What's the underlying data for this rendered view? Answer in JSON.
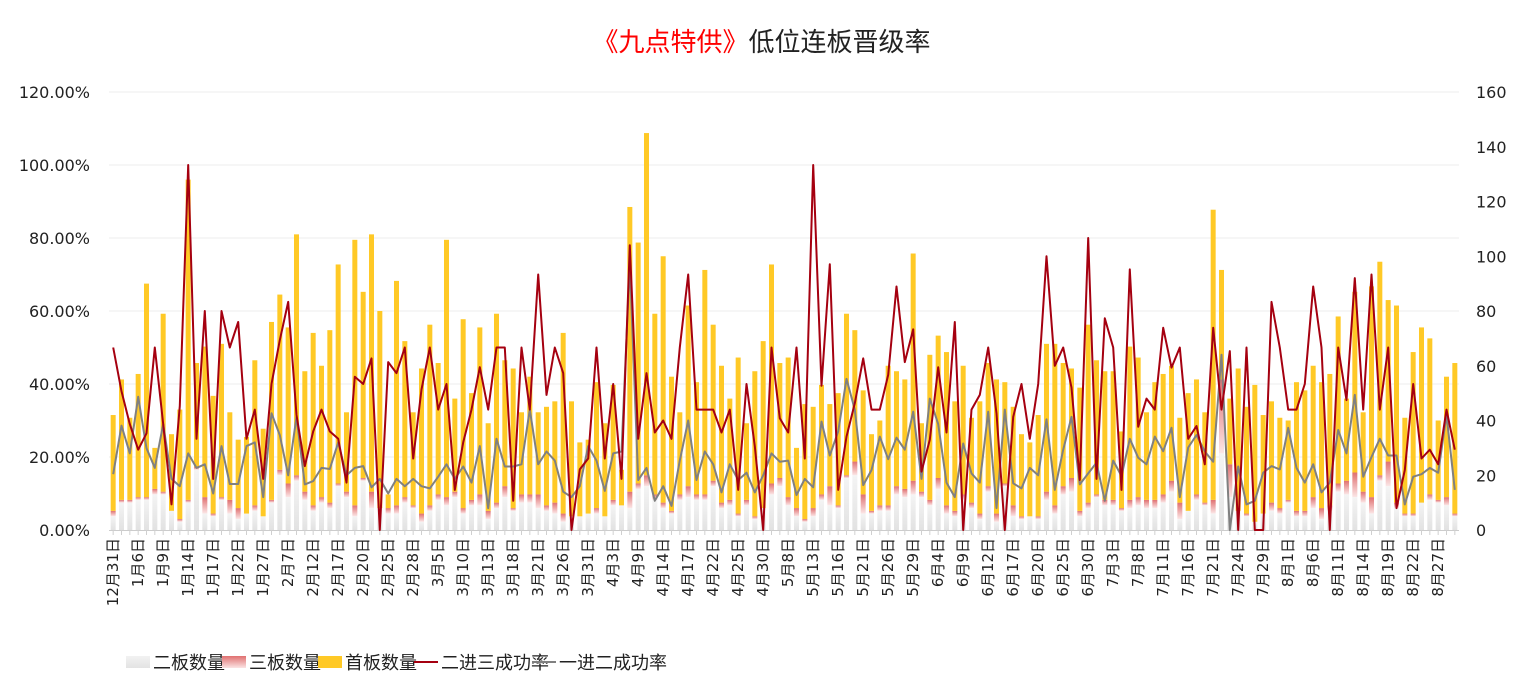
{
  "title": {
    "highlight": "《九点特供》",
    "rest": "低位连板晋级率"
  },
  "colors": {
    "two_board": "#e6e6e6",
    "three_board": "#e07070",
    "first_board": "#ffc926",
    "line_2to3": "#a50010",
    "line_1to2": "#808080",
    "grid": "#eeeeee"
  },
  "chart_data": {
    "type": "bar+line",
    "title": "《九点特供》低位连板晋级率",
    "left_axis": {
      "ticks": [
        "0.00%",
        "20.00%",
        "40.00%",
        "60.00%",
        "80.00%",
        "100.00%",
        "120.00%"
      ],
      "range": [
        0,
        120
      ]
    },
    "right_axis": {
      "ticks": [
        "0",
        "20",
        "40",
        "60",
        "80",
        "100",
        "120",
        "140",
        "160"
      ],
      "range": [
        0,
        160
      ]
    },
    "grid": true,
    "legend_position": "bottom",
    "x_tick_labels": [
      "12月31日",
      "1月6日",
      "1月9日",
      "1月14日",
      "1月17日",
      "1月22日",
      "1月27日",
      "2月7日",
      "2月12日",
      "2月17日",
      "2月20日",
      "2月25日",
      "2月28日",
      "3月5日",
      "3月10日",
      "3月13日",
      "3月18日",
      "3月21日",
      "3月26日",
      "3月31日",
      "4月3日",
      "4月9日",
      "4月14日",
      "4月17日",
      "4月22日",
      "4月25日",
      "4月30日",
      "5月8日",
      "5月13日",
      "5月16日",
      "5月21日",
      "5月26日",
      "5月29日",
      "6月4日",
      "6月9日",
      "6月12日",
      "6月17日",
      "6月20日",
      "6月25日",
      "6月30日",
      "7月3日",
      "7月8日",
      "7月11日",
      "7月16日",
      "7月21日",
      "7月24日",
      "7月29日",
      "8月1日",
      "8月6日",
      "8月11日",
      "8月14日",
      "8月19日",
      "8月22日",
      "8月27日"
    ],
    "series": [
      {
        "name": "二板数量",
        "type": "stacked-bar",
        "axis": "right",
        "values": [
          5,
          10,
          10,
          11,
          11,
          13,
          13,
          7,
          3,
          10,
          22,
          6,
          5,
          11,
          6,
          4,
          6,
          7,
          5,
          10,
          20,
          12,
          18,
          11,
          7,
          10,
          8,
          16,
          12,
          5,
          18,
          8,
          8,
          6,
          6,
          10,
          8,
          3,
          7,
          11,
          9,
          12,
          6,
          9,
          9,
          4,
          8,
          12,
          7,
          10,
          10,
          8,
          7,
          6,
          3,
          5,
          5,
          6,
          6,
          5,
          9,
          9,
          8,
          15,
          16,
          11,
          8,
          6,
          11,
          12,
          11,
          11,
          16,
          8,
          9,
          5,
          9,
          4,
          8,
          13,
          16,
          9,
          5,
          3,
          5,
          11,
          9,
          8,
          19,
          20,
          6,
          6,
          7,
          7,
          13,
          12,
          13,
          12,
          9,
          15,
          6,
          5,
          11,
          8,
          4,
          14,
          3,
          16,
          5,
          4,
          5,
          4,
          11,
          6,
          13,
          14,
          5,
          8,
          12,
          9,
          9,
          7,
          8,
          9,
          8,
          8,
          10,
          14,
          4,
          7,
          11,
          9,
          6,
          28,
          12,
          7,
          5,
          3,
          6,
          7,
          6,
          10,
          5,
          5,
          8,
          4,
          7,
          14,
          13,
          12,
          10,
          6,
          18,
          16,
          8,
          5,
          5,
          10,
          11,
          10,
          9,
          5
        ]
      },
      {
        "name": "三板数量",
        "type": "stacked-bar",
        "axis": "right",
        "values": [
          2,
          1,
          1,
          1,
          1,
          2,
          1,
          0,
          1,
          1,
          1,
          6,
          1,
          1,
          5,
          4,
          0,
          2,
          0,
          1,
          2,
          5,
          2,
          3,
          2,
          2,
          2,
          1,
          2,
          4,
          1,
          6,
          0,
          2,
          3,
          2,
          1,
          3,
          2,
          2,
          3,
          2,
          2,
          2,
          4,
          3,
          2,
          4,
          1,
          3,
          3,
          5,
          2,
          4,
          3,
          0,
          0,
          0,
          2,
          0,
          2,
          0,
          6,
          2,
          4,
          2,
          2,
          1,
          2,
          4,
          2,
          2,
          2,
          2,
          2,
          1,
          2,
          1,
          0,
          4,
          3,
          3,
          3,
          1,
          3,
          2,
          7,
          1,
          1,
          5,
          7,
          1,
          2,
          2,
          3,
          3,
          5,
          2,
          2,
          4,
          3,
          2,
          2,
          2,
          2,
          2,
          3,
          1,
          4,
          1,
          0,
          1,
          3,
          3,
          3,
          5,
          2,
          2,
          1,
          2,
          2,
          1,
          3,
          3,
          3,
          3,
          3,
          4,
          6,
          0,
          2,
          1,
          5,
          27,
          12,
          0,
          1,
          0,
          0,
          3,
          2,
          1,
          2,
          2,
          4,
          4,
          2,
          3,
          5,
          9,
          4,
          6,
          2,
          9,
          2,
          1,
          1,
          0,
          2,
          1,
          3,
          1
        ]
      },
      {
        "name": "首板数量",
        "type": "stacked-bar",
        "axis": "right",
        "values": [
          35,
          44,
          30,
          45,
          78,
          15,
          65,
          28,
          40,
          117,
          38,
          55,
          43,
          56,
          32,
          25,
          28,
          53,
          32,
          65,
          64,
          57,
          88,
          44,
          63,
          48,
          63,
          80,
          29,
          97,
          68,
          94,
          72,
          5,
          82,
          57,
          34,
          53,
          66,
          48,
          94,
          34,
          69,
          39,
          61,
          32,
          69,
          46,
          51,
          30,
          43,
          30,
          36,
          37,
          66,
          42,
          27,
          27,
          46,
          34,
          42,
          13,
          104,
          88,
          125,
          66,
          90,
          49,
          30,
          66,
          41,
          82,
          57,
          50,
          37,
          57,
          28,
          53,
          61,
          80,
          42,
          51,
          22,
          42,
          37,
          40,
          30,
          41,
          59,
          48,
          38,
          28,
          31,
          51,
          42,
          40,
          83,
          25,
          53,
          52,
          56,
          40,
          47,
          31,
          41,
          45,
          49,
          37,
          36,
          30,
          27,
          37,
          54,
          59,
          45,
          40,
          45,
          65,
          49,
          47,
          47,
          28,
          56,
          51,
          32,
          43,
          44,
          42,
          31,
          43,
          42,
          33,
          106,
          40,
          24,
          52,
          39,
          50,
          36,
          37,
          33,
          29,
          47,
          44,
          48,
          46,
          48,
          61,
          30,
          66,
          29,
          77,
          78,
          59,
          72,
          35,
          59,
          64,
          57,
          29,
          44,
          55
        ]
      },
      {
        "name": "二进三成功率",
        "type": "line",
        "axis": "left",
        "values": [
          50,
          38,
          29,
          22,
          26.5,
          50,
          29,
          7,
          34,
          100,
          25,
          60,
          14,
          60,
          50,
          57,
          25,
          33,
          14,
          40,
          52,
          62.5,
          31.5,
          17.5,
          27,
          33,
          27,
          25,
          13,
          42,
          40,
          47,
          0,
          46,
          43,
          50,
          19.6,
          38.5,
          50,
          33,
          40,
          11,
          24,
          33,
          44.6,
          33,
          50,
          50,
          8,
          50,
          33,
          70,
          37,
          50,
          43,
          0,
          16.6,
          19.6,
          50,
          19.6,
          40,
          14,
          78,
          25,
          43,
          26.7,
          30,
          25,
          50,
          70,
          33,
          33,
          33,
          26.7,
          33,
          11,
          40,
          23,
          0,
          50,
          30.6,
          26.7,
          50,
          19.6,
          100,
          39.5,
          72.8,
          11,
          25.6,
          34.7,
          47,
          33,
          33,
          42.5,
          66.7,
          46,
          55,
          16,
          24.7,
          44.6,
          26.7,
          57,
          0,
          33,
          37,
          50,
          32,
          0,
          31,
          40,
          25,
          40,
          75,
          45,
          50,
          39,
          13.7,
          80,
          14,
          58,
          50,
          11,
          71.4,
          28.3,
          36,
          33,
          55.4,
          44.5,
          50,
          25,
          28.5,
          18,
          55.4,
          33,
          49,
          0,
          50,
          0,
          0,
          62.5,
          50,
          33,
          33,
          40,
          66.7,
          50,
          0,
          50,
          35.6,
          69,
          33,
          70,
          33,
          50,
          6,
          16.4,
          40,
          19.6,
          22,
          18,
          33,
          22
        ]
      },
      {
        "name": "一进二成功率",
        "type": "line",
        "axis": "left",
        "values": [
          15.3,
          28.6,
          21,
          36.5,
          22.4,
          17,
          29,
          14,
          12,
          21,
          17,
          18,
          10,
          23,
          12.6,
          12.6,
          23,
          24,
          9,
          32,
          26,
          15,
          31,
          12.5,
          13.4,
          17,
          16.7,
          24,
          15,
          17,
          17.5,
          11.7,
          14,
          10,
          14,
          12,
          14,
          12,
          11.4,
          14.6,
          18,
          14,
          17.4,
          13,
          23,
          6,
          25,
          17.4,
          17.4,
          18,
          33,
          18,
          21.5,
          19,
          10.5,
          9,
          12,
          23,
          19,
          10.7,
          21,
          21.5,
          73,
          13.7,
          17,
          8,
          12,
          6.6,
          19,
          30,
          13.7,
          21.5,
          18,
          10.3,
          18,
          13.7,
          15.7,
          10.3,
          15,
          21,
          18.7,
          19,
          9.6,
          14,
          11.7,
          29.7,
          20.4,
          27,
          41.4,
          33,
          12.3,
          16.4,
          25.6,
          19.4,
          25.3,
          22,
          32.4,
          14,
          36,
          29,
          13,
          9,
          23.7,
          15.5,
          13,
          32.4,
          6,
          33,
          12.8,
          11.4,
          17,
          15,
          30.3,
          11,
          22,
          31,
          12.5,
          15.5,
          18.4,
          8,
          19,
          14.8,
          25,
          19.8,
          18,
          25.6,
          21.6,
          28,
          9,
          22.6,
          26,
          21.5,
          18.7,
          48,
          0,
          17.4,
          7,
          8,
          15.7,
          17.5,
          16.6,
          28,
          17,
          13,
          18,
          10.3,
          13,
          27.4,
          21,
          37,
          14.6,
          20,
          25,
          20.4,
          20.4,
          7,
          14.6,
          15.3,
          17,
          15.7,
          31.5,
          11
        ]
      }
    ]
  }
}
